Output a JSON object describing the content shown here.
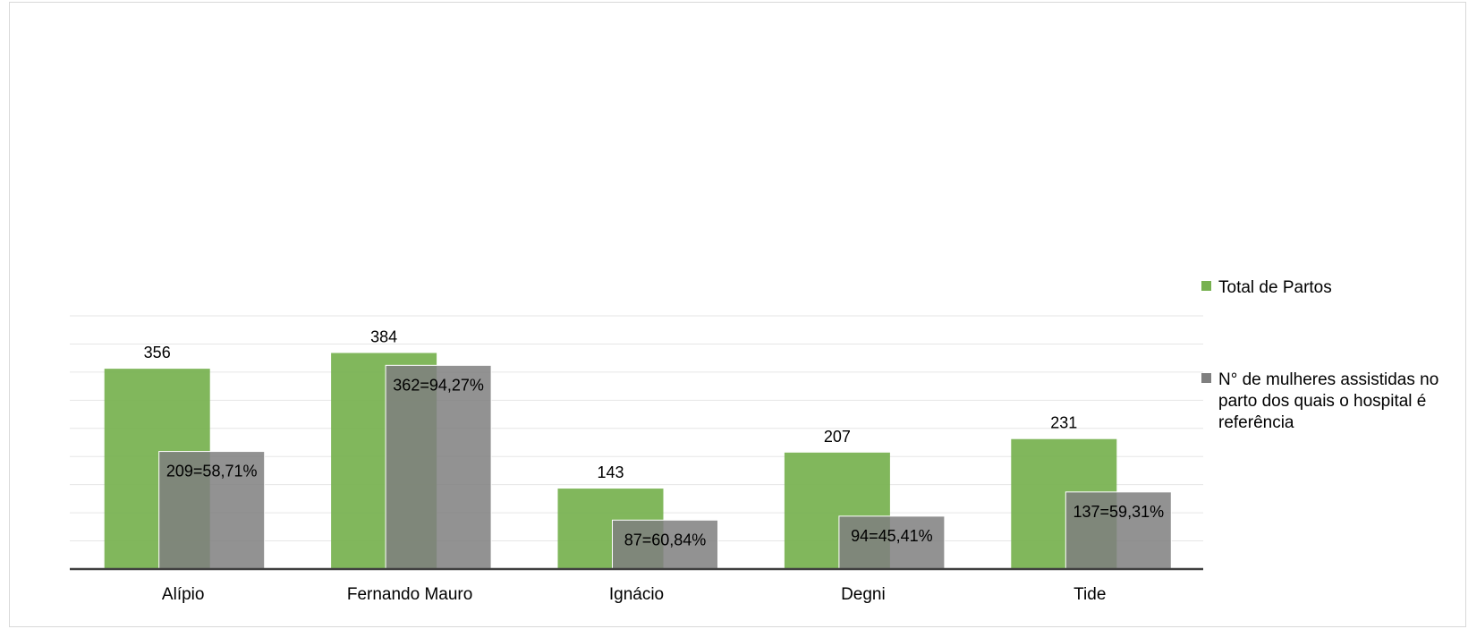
{
  "chart_data": {
    "type": "bar",
    "categories": [
      "Alípio",
      "Fernando Mauro",
      "Ignácio",
      "Degni",
      "Tide"
    ],
    "series": [
      {
        "name": "Total de Partos",
        "color": "#77b150",
        "values": [
          356,
          384,
          143,
          207,
          231
        ],
        "data_labels": [
          "356",
          "384",
          "143",
          "207",
          "231"
        ]
      },
      {
        "name": "N° de mulheres assistidas no parto dos quais o hospital é referência",
        "color": "#7f7f7f",
        "values": [
          209,
          362,
          87,
          94,
          137
        ],
        "data_labels": [
          "209=58,71%",
          "362=94,27%",
          "87=60,84%",
          "94=45,41%",
          "137=59,31%"
        ]
      }
    ],
    "ylim": [
      0,
      450
    ],
    "grid": true,
    "legend_position": "right",
    "title": "",
    "xlabel": "",
    "ylabel": ""
  }
}
